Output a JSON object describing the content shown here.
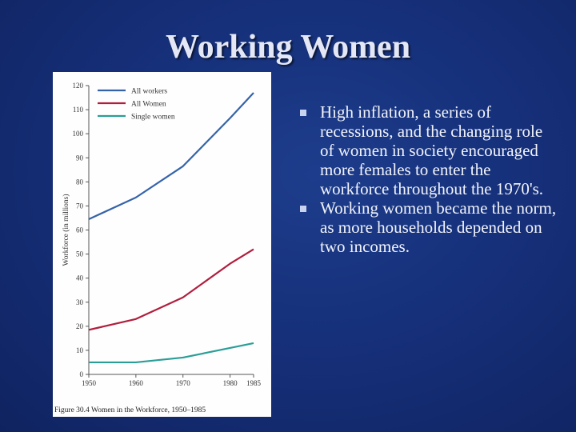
{
  "slide": {
    "title": "Working Women",
    "bullets": [
      "High inflation, a series of recessions, and the changing role of women in society encouraged more females to enter the workforce throughout the 1970's.",
      "Working women became the norm, as more households depended on two incomes."
    ]
  },
  "figure": {
    "caption": "Figure 30.4 Women in the Workforce, 1950–1985"
  },
  "colors": {
    "all_workers": "#3563a8",
    "all_women": "#b01e3d",
    "single_women": "#2a9e96"
  },
  "chart_data": {
    "type": "line",
    "xlabel": "",
    "ylabel": "Workforce (in millions)",
    "x": [
      1950,
      1960,
      1970,
      1980,
      1985
    ],
    "x_ticks": [
      "1950",
      "1960",
      "1970",
      "1980",
      "1985"
    ],
    "y_ticks": [
      "0",
      "10",
      "20",
      "30",
      "40",
      "50",
      "60",
      "70",
      "80",
      "90",
      "100",
      "110",
      "120"
    ],
    "xlim": [
      1950,
      1985
    ],
    "ylim": [
      0,
      120
    ],
    "grid": false,
    "legend_position": "top-left",
    "series": [
      {
        "name": "All workers",
        "values": [
          64.5,
          73.5,
          86.5,
          106.5,
          117
        ]
      },
      {
        "name": "All Women",
        "values": [
          18.5,
          23,
          32,
          46,
          52
        ]
      },
      {
        "name": "Single women",
        "values": [
          5,
          5,
          7,
          11,
          13
        ]
      }
    ]
  }
}
